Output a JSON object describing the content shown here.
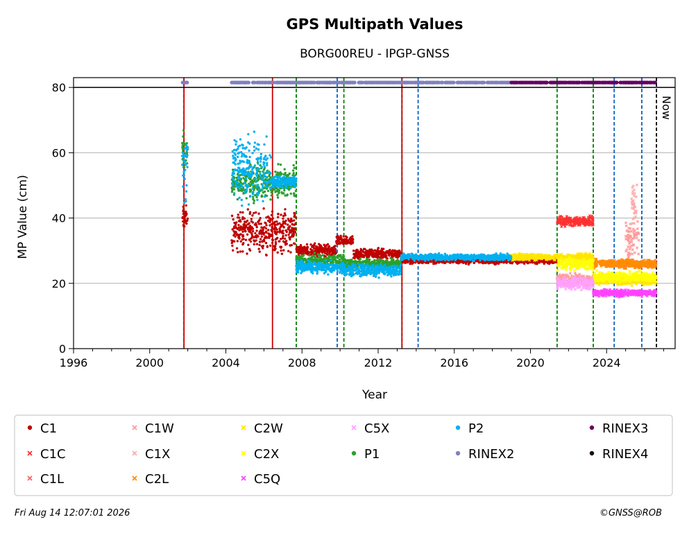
{
  "chart_data": {
    "type": "scatter",
    "title": "GPS Multipath Values",
    "subtitle": "BORG00REU - IPGP-GNSS",
    "xlabel": "Year",
    "ylabel": "MP Value (cm)",
    "xlim": [
      1996,
      2027.6
    ],
    "ylim": [
      0,
      83
    ],
    "x_ticks": [
      "1996",
      "2000",
      "2004",
      "2008",
      "2012",
      "2016",
      "2020",
      "2024"
    ],
    "x_tick_values": [
      1996,
      2000,
      2004,
      2008,
      2012,
      2016,
      2020,
      2024
    ],
    "y_ticks": [
      "0",
      "20",
      "40",
      "60",
      "80"
    ],
    "y_tick_values": [
      0,
      20,
      40,
      60,
      80
    ],
    "grid": "horizontal",
    "now_label": "Now",
    "now_x": 2026.62,
    "reference_line_y": 80,
    "events": [
      {
        "x": 2001.8,
        "kind": "green-dashed"
      },
      {
        "x": 2001.8,
        "kind": "red-solid"
      },
      {
        "x": 2006.45,
        "kind": "red-solid"
      },
      {
        "x": 2007.7,
        "kind": "green-dashed"
      },
      {
        "x": 2009.85,
        "kind": "blue-dashed"
      },
      {
        "x": 2010.2,
        "kind": "green-dashed"
      },
      {
        "x": 2013.25,
        "kind": "green-dashed"
      },
      {
        "x": 2013.25,
        "kind": "red-solid"
      },
      {
        "x": 2014.1,
        "kind": "blue-dashed"
      },
      {
        "x": 2021.4,
        "kind": "green-dashed"
      },
      {
        "x": 2023.3,
        "kind": "green-dashed"
      },
      {
        "x": 2024.4,
        "kind": "blue-dashed"
      },
      {
        "x": 2025.85,
        "kind": "blue-dashed"
      }
    ],
    "series": [
      {
        "name": "C1",
        "color": "#c00000",
        "marker": "dot",
        "segments": [
          [
            2001.7,
            2002.0,
            40,
            3
          ],
          [
            2004.3,
            2007.7,
            36,
            5
          ],
          [
            2007.7,
            2009.8,
            30,
            1.5
          ],
          [
            2009.8,
            2010.7,
            33,
            1.2
          ],
          [
            2010.7,
            2013.2,
            29,
            1.2
          ],
          [
            2013.2,
            2019.0,
            27,
            0.8
          ],
          [
            2019.0,
            2021.4,
            27,
            0.8
          ]
        ]
      },
      {
        "name": "C1C",
        "color": "#ff3030",
        "marker": "x",
        "segments": [
          [
            2021.4,
            2023.3,
            39,
            1.2
          ]
        ]
      },
      {
        "name": "C1L",
        "color": "#ff6060",
        "marker": "x",
        "segments": [
          [
            2024.0,
            2026.6,
            26,
            0.8
          ]
        ]
      },
      {
        "name": "C1W",
        "color": "#ff9a9a",
        "marker": "x",
        "segments": [
          [
            2021.4,
            2023.3,
            21,
            1.5
          ],
          [
            2025.0,
            2025.7,
            33,
            6
          ]
        ]
      },
      {
        "name": "C1X",
        "color": "#ffaaaa",
        "marker": "x",
        "segments": [
          [
            2025.3,
            2025.6,
            44,
            6
          ]
        ]
      },
      {
        "name": "C2L",
        "color": "#ff8c00",
        "marker": "x",
        "segments": [
          [
            2023.3,
            2026.6,
            26,
            1
          ]
        ]
      },
      {
        "name": "C2W",
        "color": "#ffe600",
        "marker": "x",
        "segments": [
          [
            2019.0,
            2023.3,
            28,
            0.8
          ],
          [
            2023.3,
            2026.6,
            21,
            1.2
          ]
        ]
      },
      {
        "name": "C2X",
        "color": "#ffff00",
        "marker": "x",
        "segments": [
          [
            2021.4,
            2023.3,
            26,
            1.5
          ],
          [
            2023.3,
            2026.6,
            22,
            1.2
          ]
        ]
      },
      {
        "name": "C5Q",
        "color": "#ff40ff",
        "marker": "x",
        "segments": [
          [
            2023.3,
            2026.6,
            17,
            0.8
          ]
        ]
      },
      {
        "name": "C5X",
        "color": "#ffa0ff",
        "marker": "x",
        "segments": [
          [
            2021.4,
            2023.3,
            20,
            1.5
          ]
        ]
      },
      {
        "name": "P1",
        "color": "#2ca02c",
        "marker": "dot",
        "segments": [
          [
            2001.7,
            2002.0,
            60,
            6
          ],
          [
            2004.3,
            2007.7,
            51,
            4
          ],
          [
            2007.7,
            2010.2,
            27,
            1.5
          ],
          [
            2010.2,
            2013.2,
            26,
            1.2
          ]
        ]
      },
      {
        "name": "P2",
        "color": "#00b0f0",
        "marker": "dot",
        "segments": [
          [
            2001.7,
            2002.0,
            55,
            8
          ],
          [
            2004.3,
            2006.4,
            55,
            8
          ],
          [
            2006.4,
            2007.7,
            51,
            1.5
          ],
          [
            2007.7,
            2010.2,
            25,
            1.5
          ],
          [
            2010.2,
            2013.2,
            24,
            1.5
          ],
          [
            2013.2,
            2019.0,
            28,
            0.8
          ]
        ]
      },
      {
        "name": "RINEX2",
        "color": "#8080c0",
        "marker": "dot",
        "segments": [
          [
            2001.7,
            2002.0,
            81.5,
            0
          ],
          [
            2004.3,
            2019.0,
            81.5,
            0
          ]
        ]
      },
      {
        "name": "RINEX3",
        "color": "#660066",
        "marker": "dot",
        "segments": [
          [
            2019.0,
            2026.6,
            81.5,
            0
          ]
        ]
      },
      {
        "name": "RINEX4",
        "color": "#1a001a",
        "marker": "dot",
        "segments": []
      }
    ]
  },
  "footer": {
    "timestamp": "Fri Aug 14 12:07:01 2026",
    "copyright": "©GNSS@ROB"
  }
}
